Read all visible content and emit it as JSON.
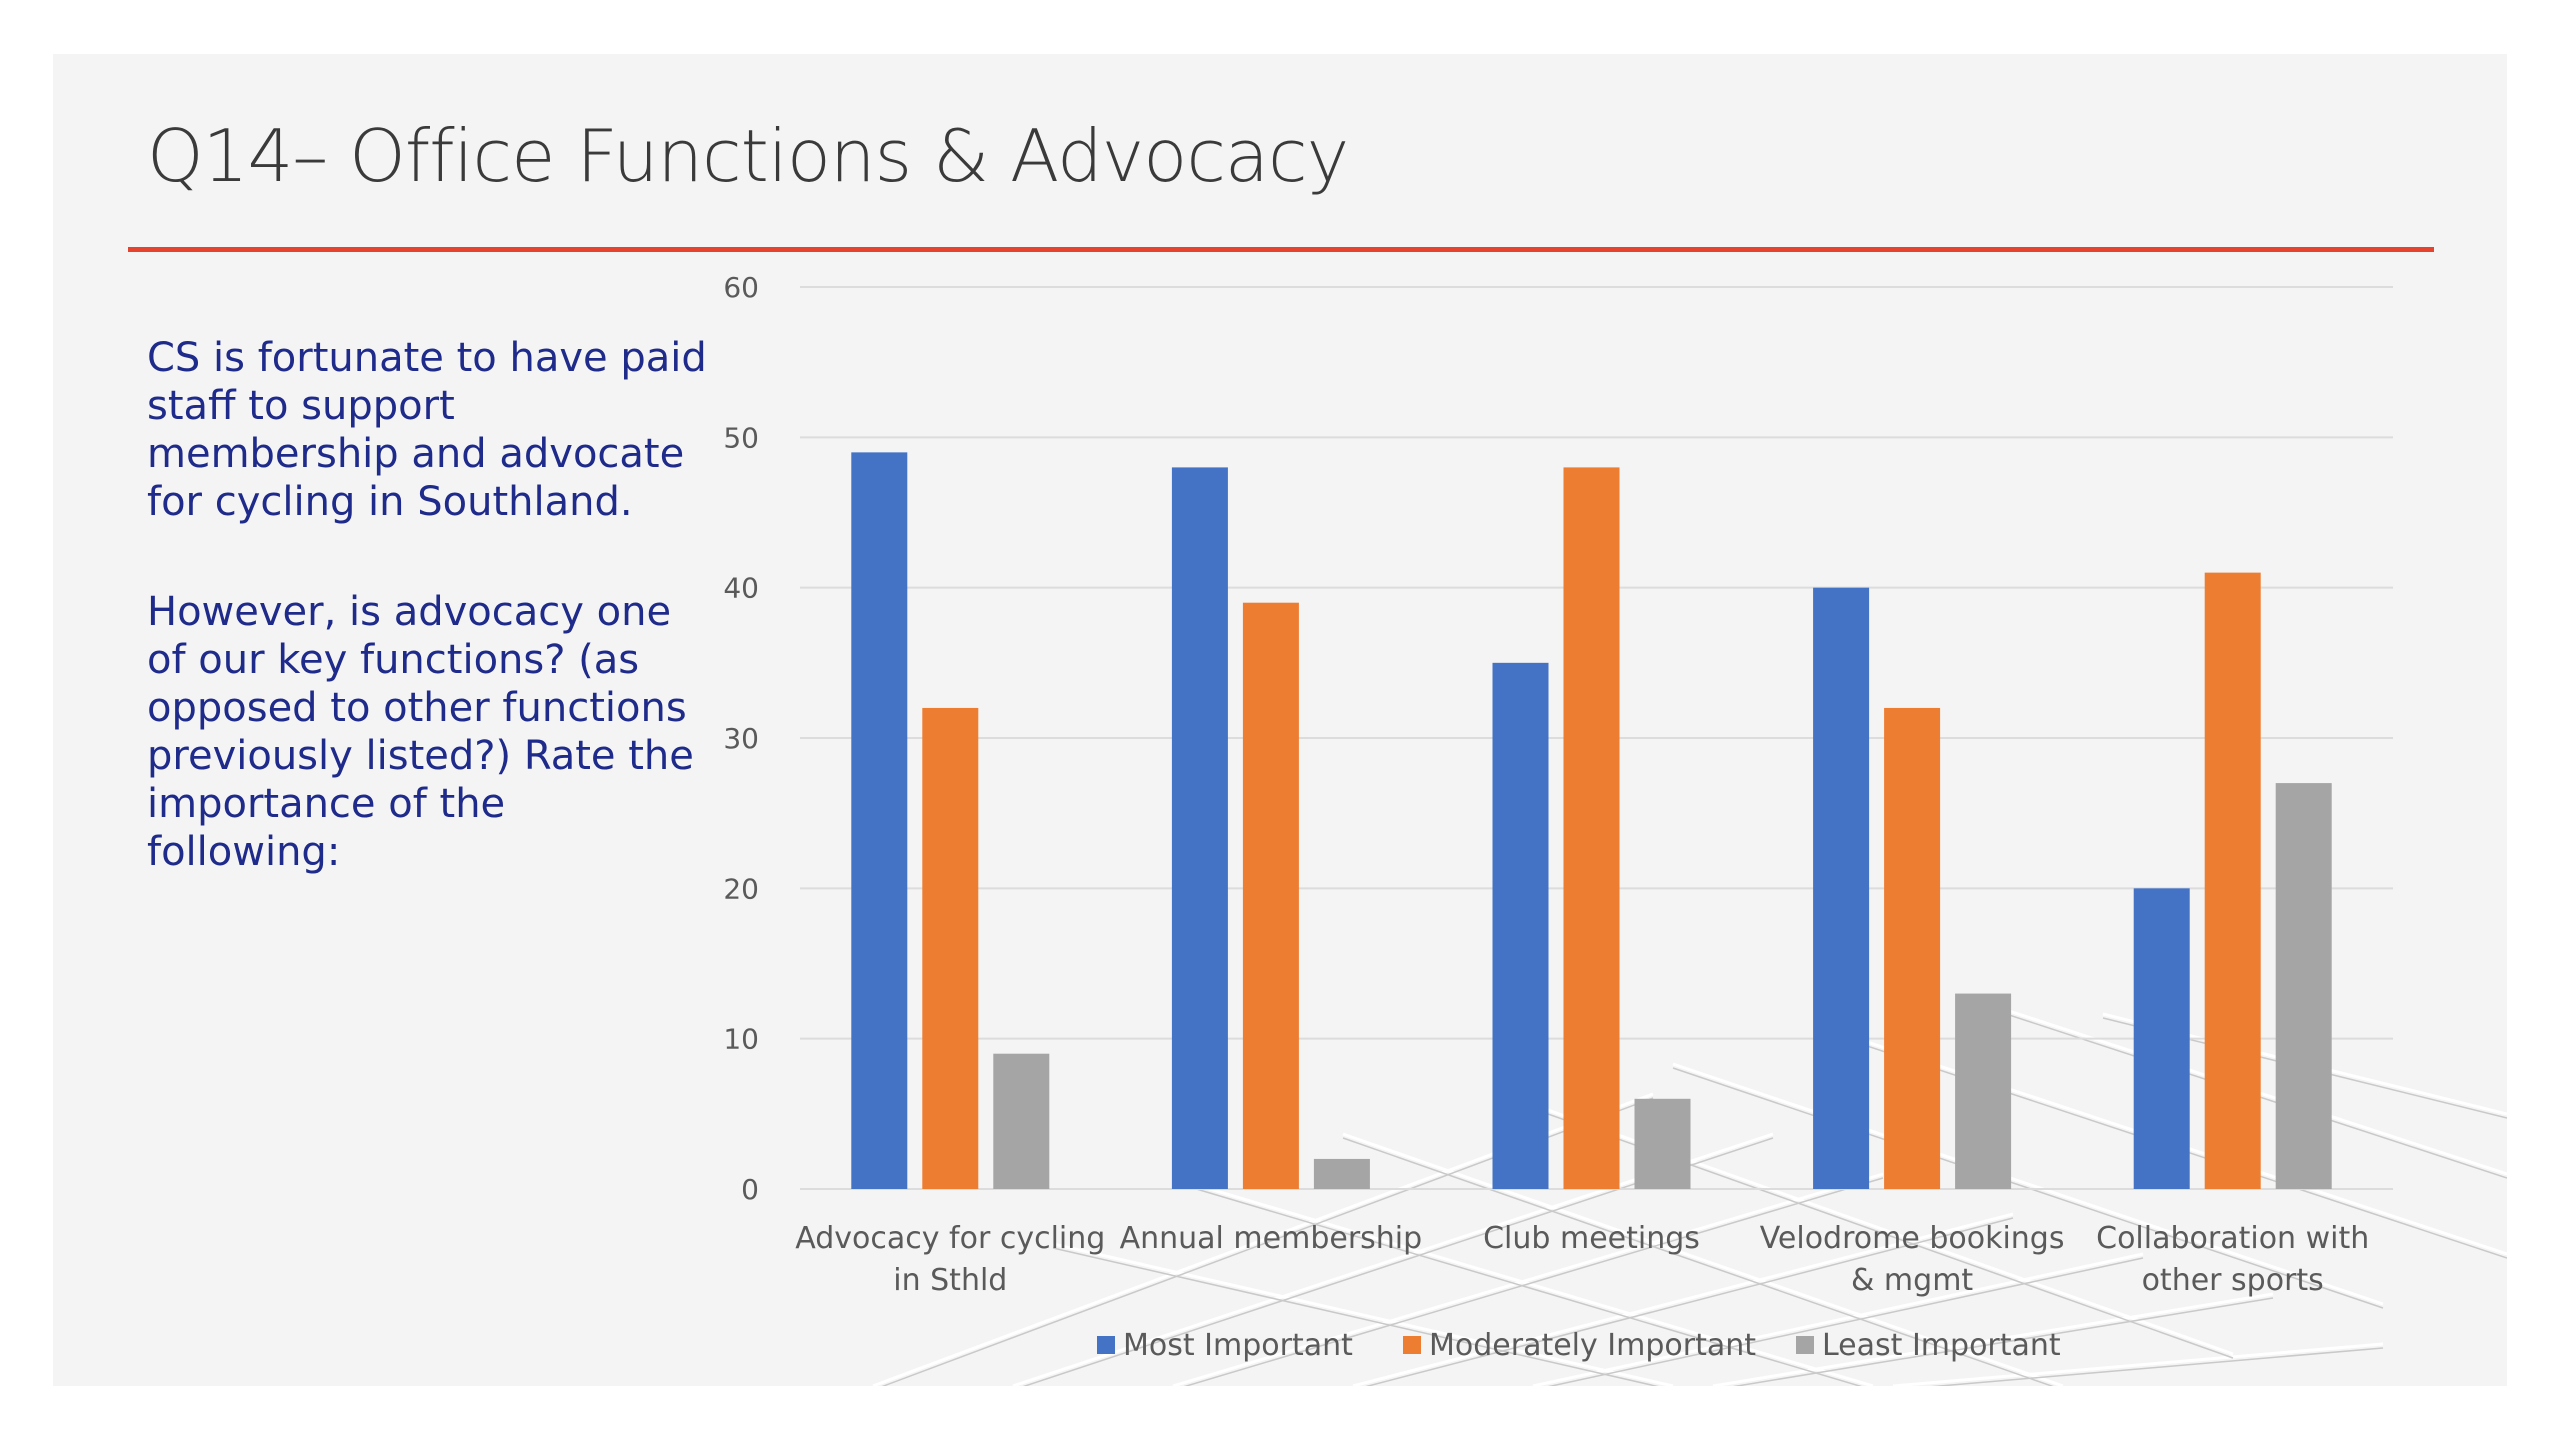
{
  "slide": {
    "title": "Q14– Office Functions & Advocacy",
    "paragraphs": [
      "CS is fortunate to have paid staff to support membership and advocate for cycling in Southland.",
      "However, is advocacy one of our key functions? (as opposed to other functions previously listed?) Rate the importance of the following:"
    ]
  },
  "colors": {
    "accent_rule": "#e5432d",
    "body_text": "#1f2b8a"
  },
  "chart_data": {
    "type": "bar",
    "title": "",
    "xlabel": "",
    "ylabel": "",
    "ylim": [
      0,
      60
    ],
    "y_ticks": [
      0,
      10,
      20,
      30,
      40,
      50,
      60
    ],
    "grid": true,
    "legend_position": "bottom",
    "categories": [
      [
        "Advocacy for cycling",
        "in Sthld"
      ],
      [
        "Annual membership"
      ],
      [
        "Club meetings"
      ],
      [
        "Velodrome bookings",
        "& mgmt"
      ],
      [
        "Collaboration with",
        "other sports"
      ]
    ],
    "series": [
      {
        "name": "Most Important",
        "color": "#4472c4",
        "values": [
          49,
          48,
          35,
          40,
          20
        ]
      },
      {
        "name": "Moderately Important",
        "color": "#ed7d31",
        "values": [
          32,
          39,
          48,
          32,
          41
        ]
      },
      {
        "name": "Least Important",
        "color": "#a5a5a5",
        "values": [
          9,
          2,
          6,
          13,
          27
        ]
      }
    ]
  }
}
